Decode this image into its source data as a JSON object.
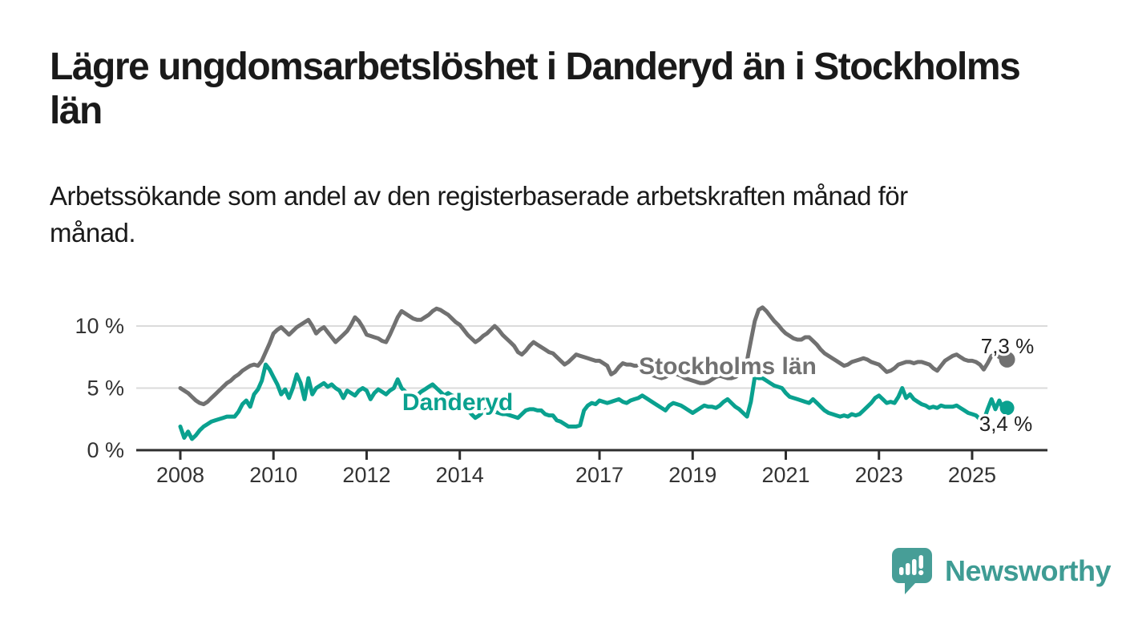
{
  "header": {
    "title": "Lägre ungdomsarbetslöshet i Danderyd än i Stockholms län",
    "subtitle": "Arbetssökande som andel av den registerbaserade arbetskraften månad för månad."
  },
  "chart_data": {
    "type": "line",
    "unit": "percent",
    "frequency": "monthly",
    "x_range": {
      "start": "2008-01",
      "end": "2025-10"
    },
    "x_tick_labels": [
      "2008",
      "2010",
      "2012",
      "2014",
      "2017",
      "2019",
      "2021",
      "2023",
      "2025"
    ],
    "y_ticks": [
      {
        "value": 0,
        "label": "0 %"
      },
      {
        "value": 5,
        "label": "5 %"
      },
      {
        "value": 10,
        "label": "10 %"
      }
    ],
    "ylim": [
      0,
      12
    ],
    "grid": "horizontal",
    "legend": "inline-labels",
    "colors": {
      "axis": "#2e2e2e",
      "gridline": "#dbdbdb",
      "tick_text": "#333333",
      "end_label_text": "#222222"
    },
    "series": [
      {
        "name": "Stockholms län",
        "color": "#717171",
        "end_value_label": "7,3 %",
        "end_value": 7.3,
        "values": [
          5.0,
          4.8,
          4.6,
          4.3,
          4.0,
          3.8,
          3.7,
          3.9,
          4.2,
          4.5,
          4.8,
          5.1,
          5.4,
          5.6,
          5.9,
          6.1,
          6.4,
          6.6,
          6.8,
          6.9,
          6.8,
          7.2,
          7.9,
          8.6,
          9.4,
          9.7,
          9.9,
          9.6,
          9.3,
          9.6,
          9.9,
          10.1,
          10.3,
          10.5,
          10.0,
          9.4,
          9.7,
          9.9,
          9.5,
          9.1,
          8.7,
          9.0,
          9.3,
          9.6,
          10.1,
          10.7,
          10.4,
          9.9,
          9.3,
          9.2,
          9.1,
          9.0,
          8.8,
          8.7,
          9.3,
          10.0,
          10.7,
          11.2,
          11.0,
          10.8,
          10.6,
          10.5,
          10.5,
          10.7,
          10.9,
          11.2,
          11.4,
          11.3,
          11.1,
          10.9,
          10.6,
          10.3,
          10.1,
          9.7,
          9.3,
          9.0,
          8.7,
          8.9,
          9.2,
          9.4,
          9.7,
          10.0,
          9.7,
          9.3,
          9.0,
          8.7,
          8.4,
          7.9,
          7.7,
          8.0,
          8.4,
          8.7,
          8.5,
          8.3,
          8.1,
          7.9,
          7.8,
          7.5,
          7.2,
          6.9,
          7.1,
          7.4,
          7.7,
          7.6,
          7.5,
          7.4,
          7.3,
          7.2,
          7.2,
          7.0,
          6.8,
          6.1,
          6.3,
          6.7,
          7.0,
          6.9,
          6.9,
          6.8,
          6.8,
          6.5,
          6.4,
          6.2,
          6.0,
          5.9,
          5.8,
          5.9,
          6.1,
          6.2,
          6.1,
          6.0,
          5.8,
          5.7,
          5.6,
          5.5,
          5.4,
          5.4,
          5.5,
          5.7,
          5.9,
          6.0,
          5.9,
          5.8,
          5.8,
          5.9,
          6.1,
          6.4,
          7.2,
          8.8,
          10.4,
          11.3,
          11.5,
          11.2,
          10.8,
          10.4,
          10.1,
          9.7,
          9.4,
          9.2,
          9.0,
          8.9,
          8.9,
          9.1,
          9.1,
          8.8,
          8.5,
          8.1,
          7.8,
          7.6,
          7.4,
          7.2,
          7.0,
          6.8,
          6.9,
          7.1,
          7.2,
          7.3,
          7.4,
          7.3,
          7.1,
          7.0,
          6.9,
          6.6,
          6.3,
          6.4,
          6.6,
          6.9,
          7.0,
          7.1,
          7.1,
          7.0,
          7.1,
          7.1,
          7.0,
          6.9,
          6.6,
          6.4,
          6.8,
          7.2,
          7.4,
          7.6,
          7.7,
          7.5,
          7.3,
          7.2,
          7.2,
          7.1,
          6.9,
          6.5,
          7.0,
          7.6,
          7.7,
          7.5,
          7.3,
          7.3
        ]
      },
      {
        "name": "Danderyd",
        "color": "#0aa18f",
        "end_value_label": "3,4 %",
        "end_value": 3.4,
        "values": [
          1.9,
          1.0,
          1.5,
          0.9,
          1.2,
          1.6,
          1.9,
          2.1,
          2.3,
          2.4,
          2.5,
          2.6,
          2.7,
          2.7,
          2.7,
          3.1,
          3.7,
          4.0,
          3.5,
          4.5,
          4.9,
          5.6,
          6.9,
          6.5,
          5.9,
          5.3,
          4.5,
          4.9,
          4.2,
          5.0,
          6.1,
          5.4,
          4.1,
          5.8,
          4.5,
          5.0,
          5.2,
          5.4,
          5.1,
          5.3,
          5.0,
          4.8,
          4.2,
          4.8,
          4.6,
          4.4,
          4.8,
          5.0,
          4.8,
          4.1,
          4.6,
          4.9,
          4.7,
          4.5,
          4.8,
          5.0,
          5.7,
          5.0,
          4.7,
          4.4,
          4.6,
          4.4,
          4.7,
          4.9,
          5.1,
          5.3,
          5.0,
          4.7,
          4.4,
          4.6,
          4.4,
          4.3,
          4.1,
          3.7,
          3.3,
          2.9,
          2.6,
          2.8,
          3.1,
          3.3,
          3.2,
          3.1,
          3.0,
          2.9,
          2.9,
          2.8,
          2.7,
          2.6,
          2.9,
          3.2,
          3.3,
          3.3,
          3.2,
          3.2,
          2.9,
          2.8,
          2.8,
          2.4,
          2.3,
          2.1,
          1.9,
          1.9,
          1.9,
          2.0,
          3.2,
          3.6,
          3.8,
          3.7,
          4.0,
          3.9,
          3.8,
          3.9,
          4.0,
          4.1,
          3.9,
          3.8,
          4.0,
          4.1,
          4.2,
          4.4,
          4.2,
          4.0,
          3.8,
          3.6,
          3.4,
          3.2,
          3.6,
          3.8,
          3.7,
          3.6,
          3.4,
          3.2,
          3.0,
          3.2,
          3.4,
          3.6,
          3.5,
          3.5,
          3.4,
          3.6,
          3.9,
          4.1,
          3.8,
          3.5,
          3.3,
          3.0,
          2.7,
          3.9,
          5.9,
          5.8,
          5.8,
          5.6,
          5.4,
          5.2,
          5.1,
          5.0,
          4.6,
          4.3,
          4.2,
          4.1,
          4.0,
          3.9,
          3.8,
          4.1,
          3.8,
          3.5,
          3.2,
          3.0,
          2.9,
          2.8,
          2.7,
          2.8,
          2.7,
          2.9,
          2.8,
          2.9,
          3.2,
          3.5,
          3.8,
          4.2,
          4.4,
          4.1,
          3.8,
          3.9,
          3.8,
          4.3,
          5.0,
          4.2,
          4.5,
          4.1,
          3.9,
          3.7,
          3.6,
          3.4,
          3.5,
          3.4,
          3.6,
          3.5,
          3.5,
          3.5,
          3.6,
          3.4,
          3.2,
          3.0,
          2.9,
          2.8,
          2.5,
          2.4,
          3.3,
          4.1,
          3.3,
          4.0,
          3.3,
          3.4
        ]
      }
    ]
  },
  "footer": {
    "brand": "Newsworthy",
    "brand_color": "#3f9c94",
    "logo_bubble_color": "#479e97"
  }
}
